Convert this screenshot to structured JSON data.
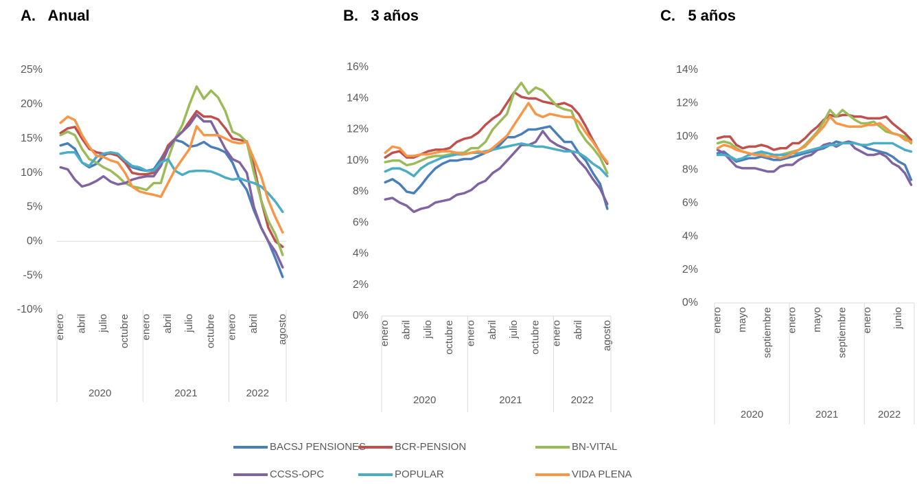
{
  "legend": [
    {
      "name": "BACSJ PENSIONES",
      "color": "#4a7ebb"
    },
    {
      "name": "BCR-PENSION",
      "color": "#c0504d"
    },
    {
      "name": "BN-VITAL",
      "color": "#9bbb59"
    },
    {
      "name": "CCSS-OPC",
      "color": "#8064a2"
    },
    {
      "name": "POPULAR",
      "color": "#4bacc6"
    },
    {
      "name": "VIDA PLENA",
      "color": "#f79646"
    }
  ],
  "chart_data": [
    {
      "type": "line",
      "title": "A.   Anual",
      "categories": [
        "enero",
        null,
        null,
        "abril",
        null,
        null,
        "julio",
        null,
        null,
        "octubre",
        null,
        null,
        "enero",
        null,
        null,
        "abril",
        null,
        null,
        "julio",
        null,
        null,
        "octubre",
        null,
        null,
        "enero",
        null,
        null,
        "abril",
        null,
        null,
        null,
        "agosto"
      ],
      "groups": [
        {
          "label": "2020",
          "count": 12
        },
        {
          "label": "2021",
          "count": 12
        },
        {
          "label": "2022",
          "count": 8
        }
      ],
      "ylim": [
        -10,
        25
      ],
      "yticks": [
        {
          "value": -10,
          "label": "-10%"
        },
        {
          "value": -5,
          "label": "-5%"
        },
        {
          "value": 0,
          "label": "0%"
        },
        {
          "value": 5,
          "label": "5%"
        },
        {
          "value": 10,
          "label": "10%"
        },
        {
          "value": 15,
          "label": "15%"
        },
        {
          "value": 20,
          "label": "20%"
        },
        {
          "value": 25,
          "label": "25%"
        }
      ],
      "series": [
        {
          "values": [
            14,
            14.3,
            13.5,
            11.5,
            10.8,
            11.3,
            12.5,
            13,
            12.5,
            11.5,
            10.8,
            10.5,
            10.3,
            10.5,
            12,
            13.8,
            14.8,
            14.5,
            13.8,
            14,
            14.5,
            13.8,
            13.5,
            13,
            11.5,
            9,
            7.5,
            4.5,
            2,
            0,
            -2.5,
            -5.2
          ]
        },
        {
          "values": [
            15.8,
            16.5,
            16.7,
            15,
            13.5,
            13,
            12.8,
            12.8,
            12.5,
            11.5,
            10,
            9.8,
            9.8,
            10,
            11.5,
            14,
            15,
            16,
            17.5,
            19,
            18.2,
            18.2,
            17.8,
            16.5,
            15,
            14.8,
            14.6,
            11,
            6,
            2,
            0,
            -0.8
          ]
        },
        {
          "values": [
            15.5,
            16,
            15.5,
            13.5,
            12,
            11.5,
            10.8,
            10.3,
            9.5,
            8.5,
            8,
            7.8,
            7.5,
            8.5,
            8.5,
            12,
            15,
            17,
            20,
            22.6,
            20.8,
            22,
            21,
            19,
            16,
            15.5,
            14.5,
            10,
            6,
            3,
            1,
            -2
          ]
        },
        {
          "values": [
            10.8,
            10.5,
            9,
            8,
            8.3,
            8.8,
            9.5,
            8.7,
            8.3,
            8.5,
            9,
            9.3,
            9.5,
            9.5,
            11,
            13.5,
            15,
            16,
            17,
            18.5,
            17.5,
            17.5,
            15.5,
            13.5,
            12,
            11.5,
            10,
            5,
            2,
            0,
            -1.5,
            -3.8
          ]
        },
        {
          "values": [
            12.8,
            13,
            13,
            11.5,
            11,
            12.3,
            12.8,
            13,
            12.8,
            11.8,
            11,
            10.8,
            10.3,
            10.3,
            11.5,
            12,
            10.3,
            9.7,
            10.2,
            10.3,
            10.3,
            10.2,
            9.8,
            9.3,
            9,
            9.2,
            8.8,
            8.5,
            8,
            7,
            5.8,
            4.3
          ]
        },
        {
          "values": [
            17.3,
            18.2,
            17.7,
            15.5,
            13.8,
            12.5,
            12.3,
            11.8,
            11.5,
            10,
            8,
            7.3,
            7,
            6.8,
            6.5,
            8.5,
            10.5,
            12,
            13.5,
            16.8,
            15.5,
            15.5,
            15.5,
            15,
            14.5,
            14.3,
            14.5,
            12,
            9.5,
            6,
            3.5,
            1.3
          ]
        }
      ]
    },
    {
      "type": "line",
      "title": "B.   3 años",
      "categories": [
        "enero",
        null,
        null,
        "abril",
        null,
        null,
        "julio",
        null,
        null,
        "octubre",
        null,
        null,
        "enero",
        null,
        null,
        "abril",
        null,
        null,
        "julio",
        null,
        null,
        "octubre",
        null,
        null,
        "enero",
        null,
        null,
        "abril",
        null,
        null,
        null,
        "agosto"
      ],
      "groups": [
        {
          "label": "2020",
          "count": 12
        },
        {
          "label": "2021",
          "count": 12
        },
        {
          "label": "2022",
          "count": 8
        }
      ],
      "ylim": [
        0,
        16
      ],
      "yticks": [
        {
          "value": 0,
          "label": "0%"
        },
        {
          "value": 2,
          "label": "2%"
        },
        {
          "value": 4,
          "label": "4%"
        },
        {
          "value": 6,
          "label": "6%"
        },
        {
          "value": 8,
          "label": "8%"
        },
        {
          "value": 10,
          "label": "10%"
        },
        {
          "value": 12,
          "label": "12%"
        },
        {
          "value": 14,
          "label": "14%"
        },
        {
          "value": 16,
          "label": "16%"
        }
      ],
      "series": [
        {
          "values": [
            8.6,
            8.8,
            8.5,
            8,
            7.9,
            8.4,
            9,
            9.5,
            9.8,
            10,
            10,
            10.1,
            10.1,
            10.3,
            10.5,
            10.7,
            11,
            11.5,
            11.5,
            11.7,
            12,
            12,
            12.1,
            12.2,
            11.7,
            11.2,
            11.2,
            10.5,
            10,
            9.2,
            8.5,
            6.9
          ]
        },
        {
          "values": [
            10.2,
            10.5,
            10.6,
            10.2,
            10.2,
            10.4,
            10.6,
            10.7,
            10.7,
            10.8,
            11.2,
            11.4,
            11.5,
            11.8,
            12.3,
            12.7,
            13,
            13.7,
            14.4,
            14.1,
            14,
            14,
            13.8,
            13.7,
            13.6,
            13.7,
            13.5,
            13,
            12.2,
            11.3,
            10.5,
            9.8
          ]
        },
        {
          "values": [
            9.9,
            10,
            10,
            9.7,
            9.8,
            10,
            10.2,
            10.3,
            10.3,
            10.4,
            10.5,
            10.5,
            10.8,
            10.8,
            11.2,
            12,
            12.5,
            13,
            14.4,
            15,
            14.3,
            14.7,
            14.5,
            14,
            13.5,
            13.3,
            13.2,
            12,
            11.3,
            10.8,
            10.2,
            9.2
          ]
        },
        {
          "values": [
            7.5,
            7.6,
            7.3,
            7.1,
            6.7,
            6.9,
            7,
            7.3,
            7.4,
            7.5,
            7.8,
            7.9,
            8.1,
            8.5,
            8.7,
            9.2,
            9.5,
            10,
            10.5,
            11,
            11,
            11.2,
            11.9,
            11.3,
            11,
            10.8,
            10.6,
            10,
            9.5,
            8.8,
            8.2,
            7.2
          ]
        },
        {
          "values": [
            9.3,
            9.5,
            9.5,
            9.3,
            9,
            9.5,
            9.8,
            10,
            10.2,
            10.3,
            10.4,
            10.4,
            10.5,
            10.5,
            10.6,
            10.7,
            10.8,
            10.9,
            11,
            11.1,
            11,
            10.9,
            10.9,
            10.8,
            10.7,
            10.6,
            10.6,
            10.5,
            10.2,
            9.8,
            9.5,
            9
          ]
        },
        {
          "values": [
            10.5,
            10.9,
            10.8,
            10.3,
            10.3,
            10.4,
            10.4,
            10.5,
            10.6,
            10.6,
            10.5,
            10.4,
            10.5,
            10.6,
            10.5,
            10.8,
            11.2,
            11.6,
            12.3,
            13,
            13.7,
            13,
            12.8,
            13,
            12.9,
            12.8,
            12.8,
            12.5,
            11.8,
            11.2,
            10.5,
            9.9
          ]
        }
      ]
    },
    {
      "type": "line",
      "title": "C.   5 años",
      "categories": [
        "enero",
        null,
        null,
        null,
        "mayo",
        null,
        null,
        null,
        "septiembre",
        null,
        null,
        null,
        "enero",
        null,
        null,
        null,
        "mayo",
        null,
        null,
        null,
        "septiembre",
        null,
        null,
        null,
        "enero",
        null,
        null,
        null,
        null,
        "junio",
        null,
        null
      ],
      "groups": [
        {
          "label": "2020",
          "count": 12
        },
        {
          "label": "2021",
          "count": 12
        },
        {
          "label": "2022",
          "count": 8
        }
      ],
      "ylim": [
        0,
        14
      ],
      "yticks": [
        {
          "value": 0,
          "label": "0%"
        },
        {
          "value": 2,
          "label": "2%"
        },
        {
          "value": 4,
          "label": "4%"
        },
        {
          "value": 6,
          "label": "6%"
        },
        {
          "value": 8,
          "label": "8%"
        },
        {
          "value": 10,
          "label": "10%"
        },
        {
          "value": 12,
          "label": "12%"
        },
        {
          "value": 14,
          "label": "14%"
        }
      ],
      "series": [
        {
          "values": [
            9,
            9.1,
            8.8,
            8.5,
            8.6,
            8.7,
            8.7,
            8.8,
            8.7,
            8.6,
            8.6,
            8.7,
            8.8,
            8.9,
            9,
            9.1,
            9.2,
            9.3,
            9.5,
            9.7,
            9.6,
            9.7,
            9.6,
            9.5,
            9.3,
            9.2,
            9.1,
            9,
            8.8,
            8.5,
            8.3,
            7.4
          ]
        },
        {
          "values": [
            9.9,
            10,
            10,
            9.5,
            9.3,
            9.4,
            9.4,
            9.5,
            9.4,
            9.2,
            9.3,
            9.3,
            9.6,
            9.6,
            9.9,
            10.3,
            10.6,
            11,
            11.3,
            11.2,
            11.3,
            11.3,
            11.2,
            11.2,
            11.1,
            11.1,
            11.1,
            11.2,
            10.8,
            10.5,
            10.2,
            9.8
          ]
        },
        {
          "values": [
            9.6,
            9.7,
            9.6,
            9.3,
            9.1,
            9,
            8.9,
            9,
            9,
            8.9,
            8.9,
            9,
            9.1,
            9.2,
            9.5,
            9.9,
            10.3,
            10.9,
            11.6,
            11.2,
            11.6,
            11.3,
            11,
            10.8,
            10.8,
            10.9,
            10.6,
            10.3,
            10.2,
            10.1,
            10,
            9.6
          ]
        },
        {
          "values": [
            9.2,
            9,
            8.6,
            8.2,
            8.1,
            8.1,
            8.1,
            8,
            7.9,
            7.9,
            8.2,
            8.3,
            8.3,
            8.6,
            8.8,
            8.9,
            9.2,
            9.5,
            9.6,
            9.4,
            9.6,
            9.7,
            9.3,
            9.1,
            8.9,
            8.9,
            9,
            8.8,
            8.4,
            8.2,
            7.8,
            7.1
          ]
        },
        {
          "values": [
            8.9,
            8.9,
            8.8,
            8.6,
            8.7,
            8.9,
            9,
            9.1,
            9,
            8.9,
            8.9,
            8.9,
            9,
            9,
            9.1,
            9.2,
            9.3,
            9.4,
            9.5,
            9.5,
            9.6,
            9.6,
            9.6,
            9.5,
            9.5,
            9.6,
            9.6,
            9.6,
            9.6,
            9.4,
            9.2,
            9.1
          ]
        },
        {
          "values": [
            9.3,
            9.5,
            9.4,
            9.2,
            9.1,
            9,
            8.9,
            8.9,
            8.8,
            8.8,
            8.7,
            8.8,
            9,
            9.2,
            9.4,
            9.8,
            10.2,
            10.6,
            11.2,
            10.8,
            10.7,
            10.6,
            10.6,
            10.6,
            10.7,
            10.7,
            10.8,
            10.5,
            10.2,
            10.1,
            9.8,
            9.7
          ]
        }
      ]
    }
  ]
}
